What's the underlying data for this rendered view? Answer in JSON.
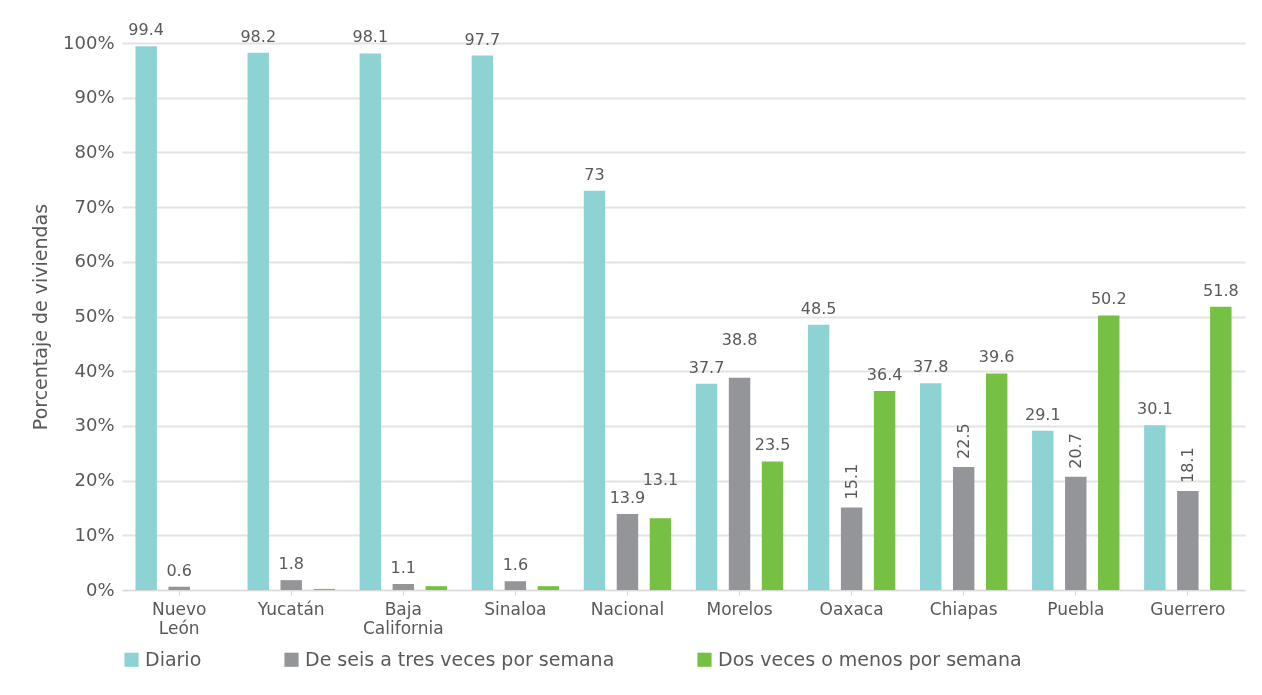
{
  "chart_data": {
    "type": "bar",
    "ylabel": "Porcentaje de viviendas",
    "categories": [
      "Nuevo León",
      "Yucatán",
      "Baja California",
      "Sinaloa",
      "Nacional",
      "Morelos",
      "Oaxaca",
      "Chiapas",
      "Puebla",
      "Guerrero"
    ],
    "series": [
      {
        "name": "Diario",
        "color": "#8ed3d3",
        "values": [
          99.4,
          98.2,
          98.1,
          97.7,
          73,
          37.7,
          48.5,
          37.8,
          29.1,
          30.1
        ],
        "value_labels": [
          "99.4",
          "98.2",
          "98.1",
          "97.7",
          "73",
          "37.7",
          "48.5",
          "37.8",
          "29.1",
          "30.1"
        ]
      },
      {
        "name": "De seis a tres veces por semana",
        "color": "#939598",
        "values": [
          0.6,
          1.8,
          1.1,
          1.6,
          13.9,
          38.8,
          15.1,
          22.5,
          20.7,
          18.1
        ],
        "value_labels": [
          "0.6",
          "1.8",
          "1.1",
          "1.6",
          "13.9",
          "38.8",
          "15.1",
          "22.5",
          "20.7",
          "18.1"
        ]
      },
      {
        "name": "Dos veces o menos por semana",
        "color": "#76c043",
        "values": [
          0,
          0.2,
          0.7,
          0.7,
          13.1,
          23.5,
          36.4,
          39.6,
          50.2,
          51.8
        ],
        "value_labels": [
          null,
          null,
          null,
          null,
          "13.1",
          "23.5",
          "36.4",
          "39.6",
          "50.2",
          "51.8"
        ]
      }
    ],
    "ylim": [
      0,
      100
    ],
    "yticks": [
      {
        "value": 0,
        "label": "0%"
      },
      {
        "value": 10,
        "label": "10%"
      },
      {
        "value": 20,
        "label": "20%"
      },
      {
        "value": 30,
        "label": "30%"
      },
      {
        "value": 40,
        "label": "40%"
      },
      {
        "value": 50,
        "label": "50%"
      },
      {
        "value": 60,
        "label": "60%"
      },
      {
        "value": 70,
        "label": "70%"
      },
      {
        "value": 80,
        "label": "80%"
      },
      {
        "value": 90,
        "label": "90%"
      },
      {
        "value": 100,
        "label": "100%"
      }
    ],
    "grid": "y",
    "legend": "bottom"
  }
}
